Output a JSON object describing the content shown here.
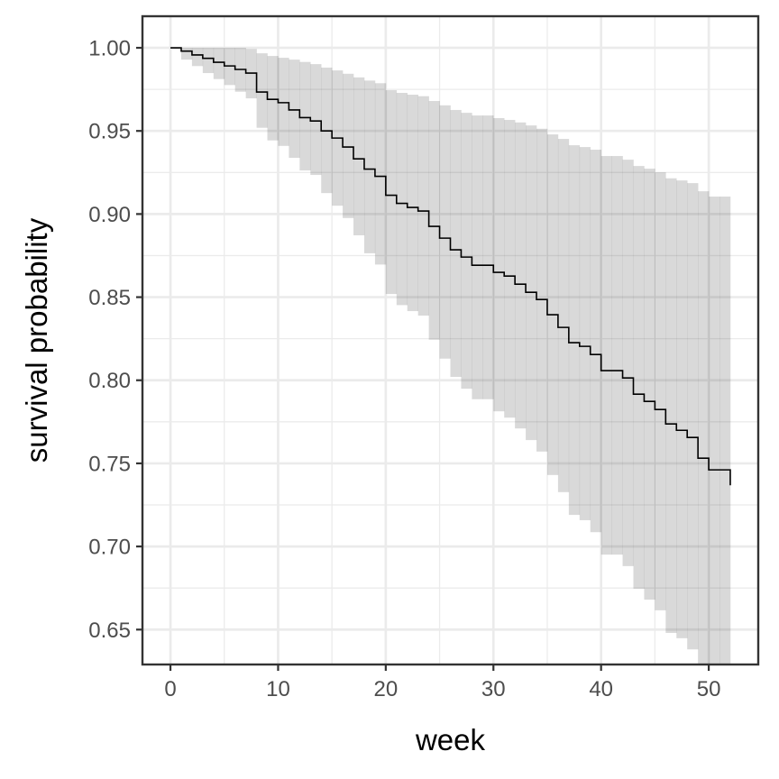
{
  "chart_data": {
    "type": "line",
    "subtype": "kaplan-meier step with confidence band",
    "xlabel": "week",
    "ylabel": "survival probability",
    "xlim": [
      -2.6,
      54.6
    ],
    "ylim": [
      0.629,
      1.019
    ],
    "x_ticks": [
      0,
      10,
      20,
      30,
      40,
      50
    ],
    "x_tick_labels": [
      "0",
      "10",
      "20",
      "30",
      "40",
      "50"
    ],
    "y_ticks": [
      0.65,
      0.7,
      0.75,
      0.8,
      0.85,
      0.9,
      0.95,
      1.0
    ],
    "y_tick_labels": [
      "0.65",
      "0.70",
      "0.75",
      "0.80",
      "0.85",
      "0.90",
      "0.95",
      "1.00"
    ],
    "grid": true,
    "weeks": [
      0,
      1,
      2,
      3,
      4,
      5,
      6,
      7,
      8,
      9,
      10,
      11,
      12,
      13,
      14,
      15,
      16,
      17,
      18,
      19,
      20,
      21,
      22,
      23,
      24,
      25,
      26,
      27,
      28,
      29,
      30,
      31,
      32,
      33,
      34,
      35,
      36,
      37,
      38,
      39,
      40,
      41,
      42,
      43,
      44,
      45,
      46,
      47,
      48,
      49,
      50,
      51,
      52
    ],
    "survival": [
      1.0,
      0.998,
      0.9957,
      0.9937,
      0.9913,
      0.9891,
      0.987,
      0.9848,
      0.9734,
      0.969,
      0.967,
      0.9626,
      0.958,
      0.956,
      0.95,
      0.9457,
      0.9403,
      0.9332,
      0.927,
      0.9227,
      0.9113,
      0.9064,
      0.904,
      0.9018,
      0.8926,
      0.8855,
      0.8785,
      0.8741,
      0.8692,
      0.8692,
      0.8649,
      0.8627,
      0.8578,
      0.8529,
      0.8486,
      0.8394,
      0.8318,
      0.8226,
      0.8204,
      0.8155,
      0.8058,
      0.8058,
      0.8014,
      0.7916,
      0.7873,
      0.7824,
      0.7737,
      0.7699,
      0.7656,
      0.7531,
      0.7461,
      0.7461,
      0.7368
    ],
    "upper": [
      1.0,
      1.0,
      1.0,
      1.0,
      1.0,
      1.0,
      1.0,
      0.9993,
      0.9967,
      0.9951,
      0.994,
      0.9929,
      0.9915,
      0.9902,
      0.9881,
      0.9864,
      0.9844,
      0.9822,
      0.9803,
      0.9787,
      0.9745,
      0.9729,
      0.9718,
      0.9709,
      0.968,
      0.9654,
      0.9626,
      0.9609,
      0.9593,
      0.9593,
      0.9577,
      0.9566,
      0.9551,
      0.9533,
      0.9513,
      0.9479,
      0.9452,
      0.9414,
      0.9403,
      0.9387,
      0.9349,
      0.9349,
      0.9327,
      0.9289,
      0.9273,
      0.9251,
      0.9215,
      0.9202,
      0.9186,
      0.9137,
      0.9105,
      0.9105,
      0.9105
    ],
    "lower": [
      1.0,
      0.9929,
      0.989,
      0.9848,
      0.9812,
      0.9776,
      0.9736,
      0.9696,
      0.9519,
      0.9443,
      0.941,
      0.9338,
      0.9262,
      0.9235,
      0.9126,
      0.905,
      0.8976,
      0.8872,
      0.8764,
      0.8696,
      0.8519,
      0.8452,
      0.8416,
      0.8389,
      0.8244,
      0.813,
      0.802,
      0.7949,
      0.7886,
      0.7886,
      0.7813,
      0.7775,
      0.771,
      0.764,
      0.7571,
      0.743,
      0.7327,
      0.719,
      0.7158,
      0.7086,
      0.6951,
      0.6951,
      0.6882,
      0.6746,
      0.668,
      0.6616,
      0.648,
      0.6448,
      0.6381,
      0.625,
      0.61,
      0.61,
      0.61
    ],
    "colors": {
      "line": "#000000",
      "band": "#000000",
      "grid": "#ebebeb",
      "border": "#333333"
    }
  }
}
